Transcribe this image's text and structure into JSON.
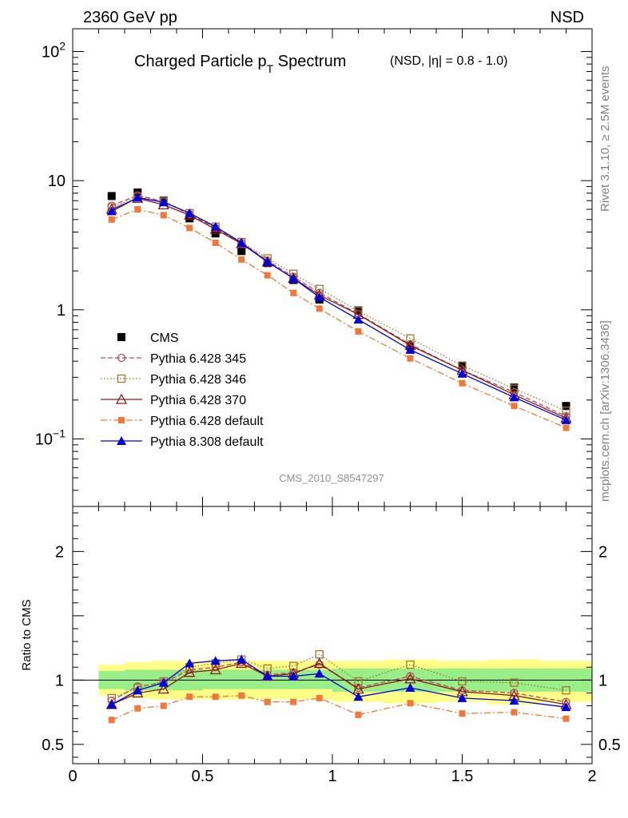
{
  "header": {
    "left": "2360 GeV pp",
    "right": "NSD"
  },
  "side_text": {
    "top": "Rivet 3.1.10, ≥ 2.5M events",
    "bottom": "mcplots.cern.ch [arXiv:1306.3436]"
  },
  "chart_data": [
    {
      "type": "scatter",
      "title": "Charged Particle p",
      "title_sub": "T",
      "title_tail": " Spectrum",
      "subtitle": "(NSD, |η| = 0.8 - 1.0)",
      "watermark": "CMS_2010_S8547297",
      "y_scale": "log",
      "xlim": [
        0,
        2
      ],
      "ylim": [
        0.03,
        150
      ],
      "y_ticks": [
        {
          "value": 0.1,
          "base": "10",
          "exp": "−1"
        },
        {
          "value": 1,
          "base": "1",
          "exp": ""
        },
        {
          "value": 10,
          "base": "10",
          "exp": ""
        },
        {
          "value": 100,
          "base": "10",
          "exp": "2"
        }
      ],
      "legend_position": "middle-left",
      "x": [
        0.15,
        0.25,
        0.35,
        0.45,
        0.55,
        0.65,
        0.75,
        0.85,
        0.95,
        1.1,
        1.3,
        1.5,
        1.7,
        1.9
      ],
      "series": [
        {
          "name": "CMS",
          "color": "#000000",
          "marker": "square-filled",
          "line": "none",
          "values": [
            7.6,
            8.1,
            7.0,
            5.1,
            3.9,
            2.85,
            2.3,
            1.7,
            1.2,
            0.99,
            0.52,
            0.37,
            0.25,
            0.18
          ]
        },
        {
          "name": "Pythia 6.428 345",
          "color": "#b54a5a",
          "marker": "circle-open",
          "line": "dashed",
          "values": [
            6.4,
            7.7,
            6.9,
            5.5,
            4.3,
            3.3,
            2.4,
            1.8,
            1.35,
            0.93,
            0.54,
            0.34,
            0.23,
            0.15
          ]
        },
        {
          "name": "Pythia 6.428 346",
          "color": "#a07530",
          "marker": "square-open",
          "line": "dotted",
          "values": [
            6.2,
            7.5,
            6.9,
            5.6,
            4.4,
            3.35,
            2.5,
            1.9,
            1.45,
            0.98,
            0.6,
            0.37,
            0.245,
            0.165
          ]
        },
        {
          "name": "Pythia 6.428 370",
          "color": "#8b1a1a",
          "marker": "triangle-open",
          "line": "solid",
          "values": [
            6.0,
            7.3,
            6.5,
            5.4,
            4.2,
            3.25,
            2.35,
            1.75,
            1.3,
            0.92,
            0.53,
            0.34,
            0.22,
            0.145
          ]
        },
        {
          "name": "Pythia 6.428 default",
          "color": "#f07838",
          "marker": "square-filled-small",
          "line": "dashdot",
          "values": [
            5.0,
            6.0,
            5.4,
            4.3,
            3.3,
            2.45,
            1.85,
            1.35,
            1.02,
            0.68,
            0.42,
            0.27,
            0.18,
            0.122
          ]
        },
        {
          "name": "Pythia 8.308 default",
          "color": "#0000dd",
          "marker": "triangle-filled",
          "line": "solid",
          "values": [
            5.8,
            7.4,
            6.8,
            5.6,
            4.4,
            3.3,
            2.35,
            1.75,
            1.25,
            0.84,
            0.49,
            0.32,
            0.21,
            0.14
          ]
        }
      ]
    },
    {
      "type": "line",
      "ylabel": "Ratio to CMS",
      "xlim": [
        0,
        2
      ],
      "ylim": [
        0.35,
        2.35
      ],
      "x_ticks": [
        {
          "value": 0,
          "label": "0"
        },
        {
          "value": 0.5,
          "label": "0.5"
        },
        {
          "value": 1,
          "label": "1"
        },
        {
          "value": 1.5,
          "label": "1.5"
        },
        {
          "value": 2,
          "label": "2"
        }
      ],
      "y_ticks": [
        {
          "value": 0.5,
          "label": "0.5"
        },
        {
          "value": 1,
          "label": "1"
        },
        {
          "value": 2,
          "label": "2"
        }
      ],
      "reference_line": 1,
      "bands": {
        "bins": [
          [
            0.1,
            0.2
          ],
          [
            0.2,
            0.3
          ],
          [
            0.3,
            0.4
          ],
          [
            0.4,
            0.5
          ],
          [
            0.5,
            0.6
          ],
          [
            0.6,
            0.7
          ],
          [
            0.7,
            0.8
          ],
          [
            0.8,
            0.9
          ],
          [
            0.9,
            1.0
          ],
          [
            1.0,
            1.2
          ],
          [
            1.2,
            1.4
          ],
          [
            1.4,
            1.6
          ],
          [
            1.6,
            1.8
          ],
          [
            1.8,
            2.0
          ]
        ],
        "outer": {
          "color": "#ffff88",
          "lo": [
            0.88,
            0.86,
            0.85,
            0.85,
            0.85,
            0.85,
            0.85,
            0.85,
            0.85,
            0.83,
            0.82,
            0.83,
            0.81,
            0.83
          ],
          "hi": [
            1.12,
            1.14,
            1.15,
            1.15,
            1.15,
            1.15,
            1.15,
            1.15,
            1.15,
            1.15,
            1.16,
            1.15,
            1.16,
            1.15
          ]
        },
        "inner": {
          "color": "#99ee88",
          "lo": [
            0.93,
            0.92,
            0.92,
            0.92,
            0.93,
            0.93,
            0.93,
            0.93,
            0.93,
            0.91,
            0.91,
            0.91,
            0.91,
            0.91
          ],
          "hi": [
            1.07,
            1.08,
            1.08,
            1.08,
            1.08,
            1.08,
            1.08,
            1.08,
            1.08,
            1.09,
            1.09,
            1.09,
            1.09,
            1.09
          ]
        }
      },
      "x": [
        0.15,
        0.25,
        0.35,
        0.45,
        0.55,
        0.65,
        0.75,
        0.85,
        0.95,
        1.1,
        1.3,
        1.5,
        1.7,
        1.9
      ],
      "series": [
        {
          "name": "Pythia 6.428 345",
          "color": "#b54a5a",
          "marker": "circle-open",
          "line": "dashed",
          "values": [
            0.84,
            0.95,
            0.98,
            1.08,
            1.1,
            1.14,
            1.04,
            1.06,
            1.12,
            0.94,
            1.03,
            0.92,
            0.9,
            0.83
          ]
        },
        {
          "name": "Pythia 6.428 346",
          "color": "#a07530",
          "marker": "square-open",
          "line": "dotted",
          "values": [
            0.86,
            0.94,
            0.99,
            1.1,
            1.13,
            1.16,
            1.09,
            1.11,
            1.2,
            0.99,
            1.12,
            0.99,
            0.98,
            0.92
          ]
        },
        {
          "name": "Pythia 6.428 370",
          "color": "#8b1a1a",
          "marker": "triangle-open",
          "line": "solid",
          "values": [
            0.81,
            0.9,
            0.93,
            1.06,
            1.08,
            1.13,
            1.03,
            1.05,
            1.13,
            0.93,
            1.01,
            0.91,
            0.88,
            0.81
          ]
        },
        {
          "name": "Pythia 6.428 default",
          "color": "#f07838",
          "marker": "square-filled-small",
          "line": "dashdot",
          "values": [
            0.69,
            0.78,
            0.8,
            0.87,
            0.87,
            0.88,
            0.83,
            0.83,
            0.86,
            0.73,
            0.82,
            0.74,
            0.75,
            0.7
          ]
        },
        {
          "name": "Pythia 8.308 default",
          "color": "#0000dd",
          "marker": "triangle-filled",
          "line": "solid",
          "values": [
            0.81,
            0.92,
            0.98,
            1.13,
            1.15,
            1.16,
            1.03,
            1.03,
            1.05,
            0.87,
            0.94,
            0.86,
            0.84,
            0.79
          ]
        }
      ]
    }
  ]
}
